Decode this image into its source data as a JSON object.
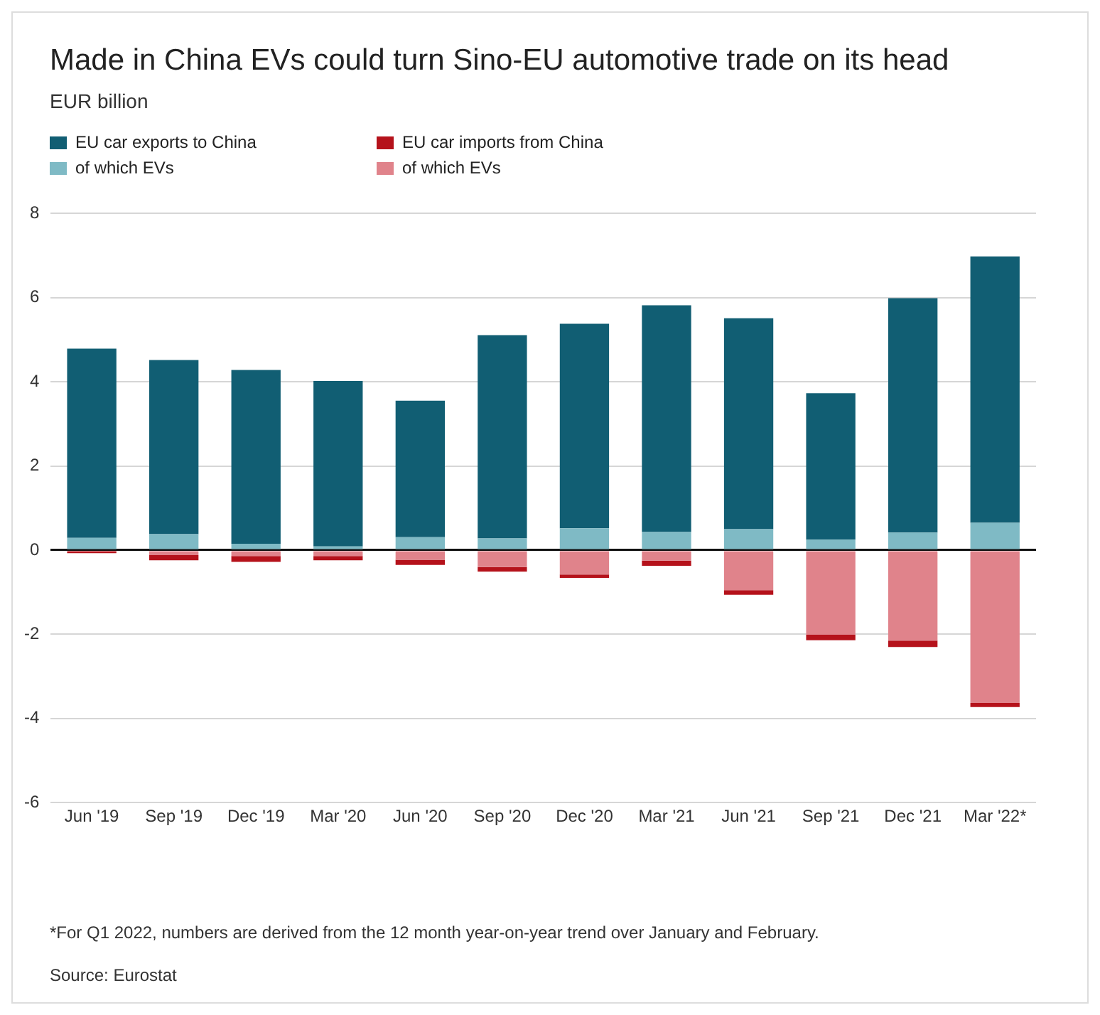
{
  "chart_data": {
    "type": "bar",
    "title": "Made in China EVs could turn Sino-EU automotive trade on its head",
    "subtitle": "EUR billion",
    "categories": [
      "Jun '19",
      "Sep '19",
      "Dec '19",
      "Mar '20",
      "Jun '20",
      "Sep '20",
      "Dec '20",
      "Mar '21",
      "Jun '21",
      "Sep '21",
      "Dec '21",
      "Mar '22*"
    ],
    "stacked": true,
    "series": [
      {
        "name": "of which EVs",
        "color": "#7fbac5",
        "values": [
          0.29,
          0.38,
          0.15,
          0.09,
          0.31,
          0.28,
          0.52,
          0.43,
          0.5,
          0.25,
          0.42,
          0.65
        ]
      },
      {
        "name": "EU car exports to China",
        "color": "#115e73",
        "values": [
          4.5,
          4.14,
          4.13,
          3.93,
          3.24,
          4.83,
          4.86,
          5.39,
          5.01,
          3.48,
          5.57,
          6.33
        ]
      },
      {
        "name": "of which EVs",
        "color": "#e0838b",
        "values": [
          null,
          -0.12,
          -0.14,
          -0.14,
          -0.23,
          -0.4,
          -0.58,
          -0.25,
          -0.95,
          -2.01,
          -2.15,
          -3.63
        ]
      },
      {
        "name": "EU car imports from China",
        "color": "#b5121b",
        "values": [
          -0.07,
          -0.12,
          -0.14,
          -0.1,
          -0.12,
          -0.11,
          -0.08,
          -0.12,
          -0.11,
          -0.13,
          -0.15,
          -0.1
        ]
      }
    ],
    "ylim": [
      -6,
      8
    ],
    "yticks": [
      -6,
      -4,
      -2,
      0,
      2,
      4,
      6,
      8
    ],
    "grid": "y",
    "legend": "top left",
    "annotations": [
      "*For Q1 2022, numbers are derived from the 12 month year-on-year trend over January and February.",
      "Source: Eurostat"
    ]
  }
}
